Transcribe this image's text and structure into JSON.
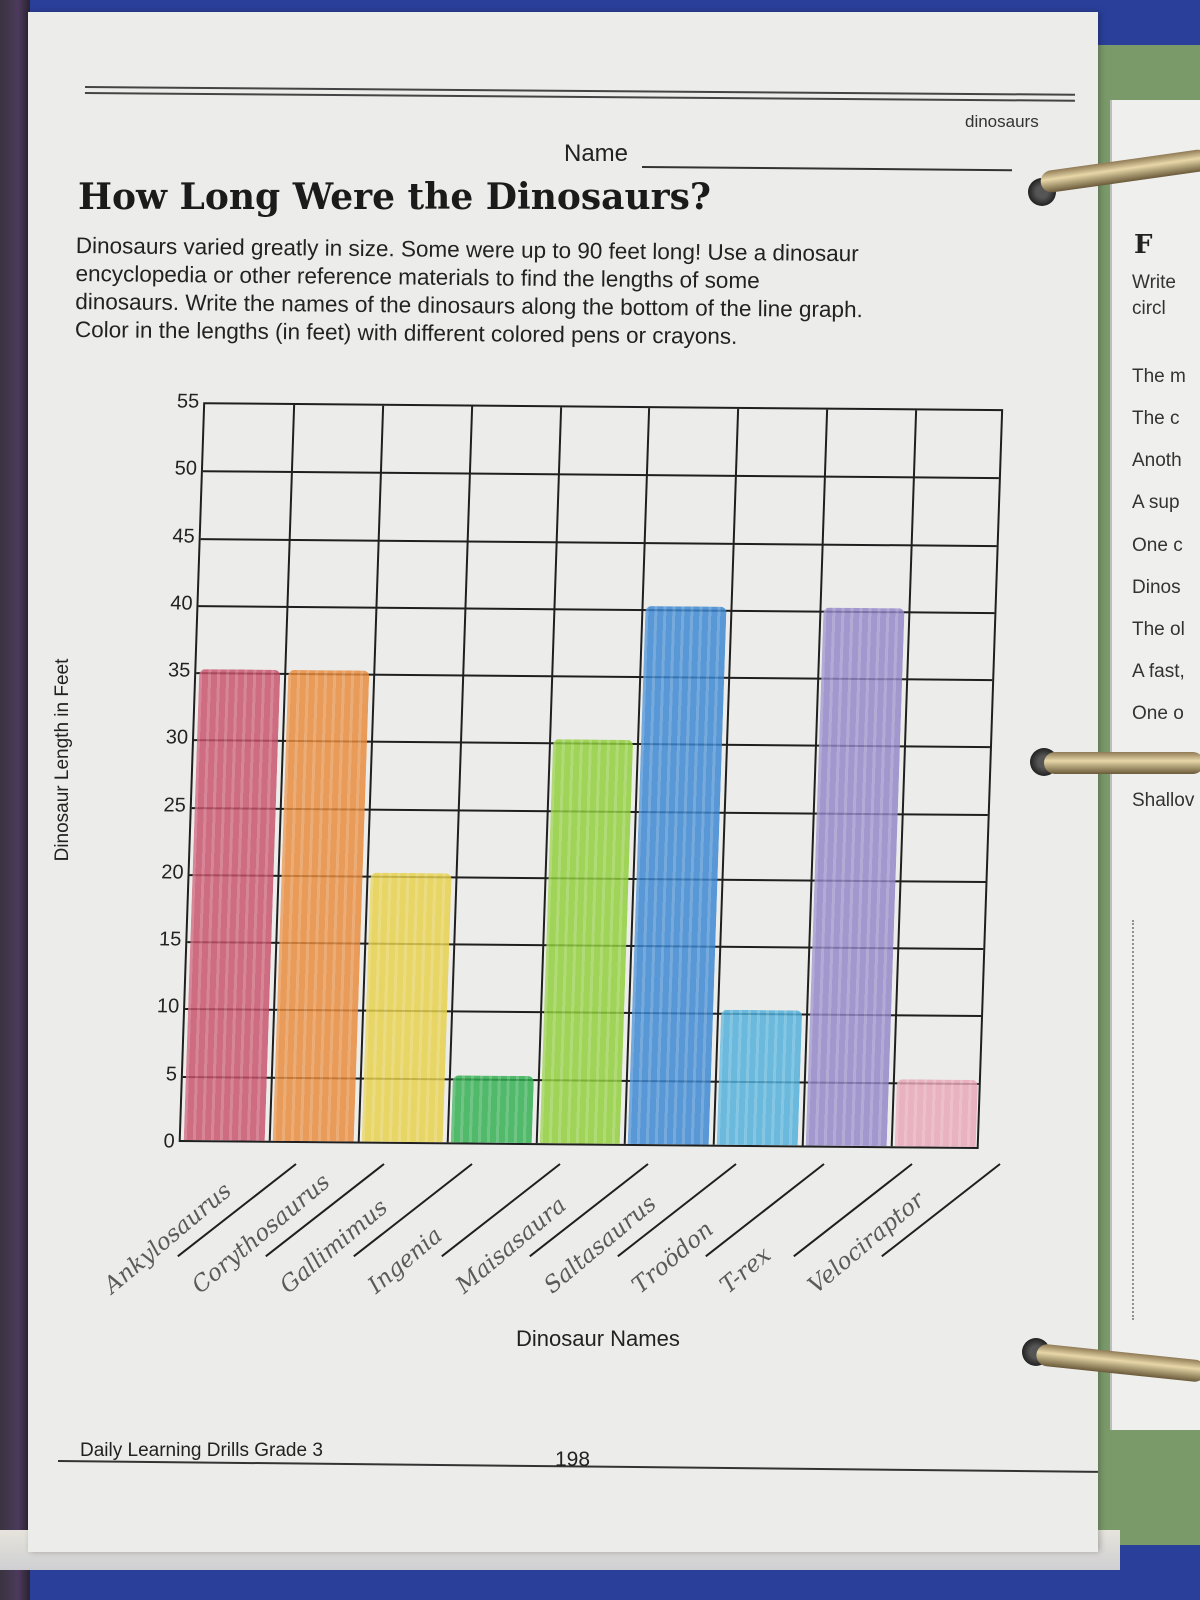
{
  "worksheet": {
    "topic_tag": "dinosaurs",
    "name_label": "Name",
    "title": "How Long Were the Dinosaurs?",
    "instructions": [
      "Dinosaurs varied greatly in size.  Some were up to 90 feet long!  Use a dinosaur",
      "encyclopedia or other reference materials to find the lengths of some",
      "dinosaurs.  Write the names of the dinosaurs along the bottom of the line graph.",
      "Color in the lengths (in feet) with different colored pens or crayons."
    ],
    "footer": {
      "book": "Daily Learning Drills Grade 3",
      "page_number": "198"
    }
  },
  "right_page": {
    "title_fragment": "F",
    "lines": [
      "Write",
      "circl",
      "The m",
      "The c",
      "Anoth",
      "A sup",
      "One c",
      "Dinos",
      "The ol",
      "A fast,",
      "One o",
      "Shallov"
    ]
  },
  "colors": {
    "background": "#2a3f9a",
    "paper": "#ececea",
    "grid": "#1f1f1f"
  },
  "chart_data": {
    "type": "bar",
    "title": "How Long Were the Dinosaurs?",
    "xlabel": "Dinosaur Names",
    "ylabel": "Dinosaur Length in Feet",
    "ylim": [
      0,
      55
    ],
    "yticks": [
      0,
      5,
      10,
      15,
      20,
      25,
      30,
      35,
      40,
      45,
      50,
      55
    ],
    "grid": true,
    "legend": null,
    "categories": [
      "Ankylosaurus",
      "Corythosaurus",
      "Gallimimus",
      "Ingenia",
      "Maisasaura",
      "Saltasaurus",
      "Troödon",
      "T-rex",
      "Velociraptor"
    ],
    "values": [
      35,
      35,
      20,
      5,
      30,
      40,
      10,
      40,
      5
    ],
    "bar_colors": [
      "#c8506a",
      "#e98a3a",
      "#e7d14a",
      "#2fae4f",
      "#8fcf3a",
      "#3a86d2",
      "#4fb0dc",
      "#9486c8",
      "#e8a6b8"
    ]
  }
}
